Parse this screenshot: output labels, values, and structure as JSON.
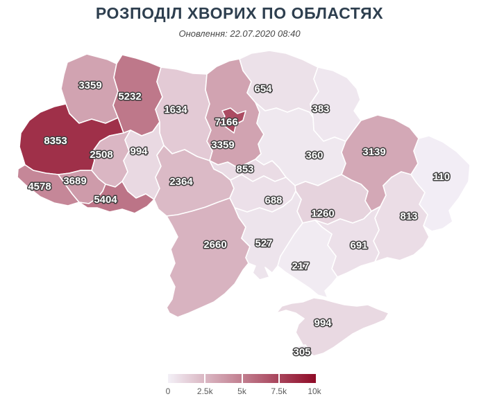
{
  "header": {
    "title": "РОЗПОДІЛ ХВОРИХ ПО ОБЛАСТЯХ",
    "subtitle": "Оновлення: 22.07.2020 08:40"
  },
  "map": {
    "regions": [
      {
        "name": "Volyn",
        "value": "3359",
        "color": "#d1a3b1"
      },
      {
        "name": "Rivne",
        "value": "5232",
        "color": "#be788a"
      },
      {
        "name": "Zhytomyr",
        "value": "1634",
        "color": "#e3cad5"
      },
      {
        "name": "Kyiv oblast",
        "value": "3359",
        "color": "#d1a3b1"
      },
      {
        "name": "Chernihiv",
        "value": "654",
        "color": "#ece1e9"
      },
      {
        "name": "Sumy",
        "value": "383",
        "color": "#efe7ef"
      },
      {
        "name": "Lviv",
        "value": "8353",
        "color": "#9f3049"
      },
      {
        "name": "Ternopil",
        "value": "2508",
        "color": "#dab6c3"
      },
      {
        "name": "Khmelnytskyi",
        "value": "994",
        "color": "#e9d9e2"
      },
      {
        "name": "Vinnytsia",
        "value": "2364",
        "color": "#dbbac6"
      },
      {
        "name": "Cherkasy",
        "value": "853",
        "color": "#eadce5"
      },
      {
        "name": "Poltava",
        "value": "360",
        "color": "#efe8ef"
      },
      {
        "name": "Kharkiv",
        "value": "3139",
        "color": "#d3a8b6"
      },
      {
        "name": "Luhansk",
        "value": "110",
        "color": "#f2edf5"
      },
      {
        "name": "Zakarpattia",
        "value": "4578",
        "color": "#c58798"
      },
      {
        "name": "Ivano-Frankivsk",
        "value": "3689",
        "color": "#ce9baa"
      },
      {
        "name": "Chernivtsi",
        "value": "5404",
        "color": "#bc7487"
      },
      {
        "name": "Kirovohrad",
        "value": "688",
        "color": "#ece0e9"
      },
      {
        "name": "Dnipropetrovsk",
        "value": "1260",
        "color": "#e6d3dd"
      },
      {
        "name": "Donetsk",
        "value": "813",
        "color": "#ebdde6"
      },
      {
        "name": "Odesa",
        "value": "2660",
        "color": "#d8b3c0"
      },
      {
        "name": "Mykolaiv",
        "value": "527",
        "color": "#ede4ec"
      },
      {
        "name": "Zaporizhzhia",
        "value": "691",
        "color": "#ece0e9"
      },
      {
        "name": "Kherson",
        "value": "217",
        "color": "#f1ebf2"
      },
      {
        "name": "Crimea",
        "value": "994",
        "color": "#e9d9e2"
      },
      {
        "name": "Sevastopol",
        "value": "305",
        "color": "#f0e9f0"
      },
      {
        "name": "Kyiv city",
        "value": "7166",
        "color": "#ab4b62"
      }
    ]
  },
  "legend": {
    "ticks": [
      "0",
      "2.5k",
      "5k",
      "7.5k",
      "10k"
    ],
    "stops": [
      "#f3f0f7",
      "#dab7c3",
      "#c17e8f",
      "#a8445b",
      "#8f0b27"
    ]
  },
  "chart_data": {
    "type": "heatmap",
    "subtype": "choropleth-map",
    "title": "РОЗПОДІЛ ХВОРИХ ПО ОБЛАСТЯХ",
    "subtitle": "Оновлення: 22.07.2020 08:40",
    "regions": [
      {
        "name": "Volyn",
        "value": 3359
      },
      {
        "name": "Rivne",
        "value": 5232
      },
      {
        "name": "Zhytomyr",
        "value": 1634
      },
      {
        "name": "Kyiv oblast",
        "value": 3359
      },
      {
        "name": "Chernihiv",
        "value": 654
      },
      {
        "name": "Sumy",
        "value": 383
      },
      {
        "name": "Lviv",
        "value": 8353
      },
      {
        "name": "Ternopil",
        "value": 2508
      },
      {
        "name": "Khmelnytskyi",
        "value": 994
      },
      {
        "name": "Vinnytsia",
        "value": 2364
      },
      {
        "name": "Cherkasy",
        "value": 853
      },
      {
        "name": "Poltava",
        "value": 360
      },
      {
        "name": "Kharkiv",
        "value": 3139
      },
      {
        "name": "Luhansk",
        "value": 110
      },
      {
        "name": "Zakarpattia",
        "value": 4578
      },
      {
        "name": "Ivano-Frankivsk",
        "value": 3689
      },
      {
        "name": "Chernivtsi",
        "value": 5404
      },
      {
        "name": "Kirovohrad",
        "value": 688
      },
      {
        "name": "Dnipropetrovsk",
        "value": 1260
      },
      {
        "name": "Donetsk",
        "value": 813
      },
      {
        "name": "Odesa",
        "value": 2660
      },
      {
        "name": "Mykolaiv",
        "value": 527
      },
      {
        "name": "Zaporizhzhia",
        "value": 691
      },
      {
        "name": "Kherson",
        "value": 217
      },
      {
        "name": "Crimea",
        "value": 994
      },
      {
        "name": "Sevastopol",
        "value": 305
      },
      {
        "name": "Kyiv city",
        "value": 7166
      }
    ],
    "colorscale": {
      "min": 0,
      "max": 10000,
      "tick_labels": [
        "0",
        "2.5k",
        "5k",
        "7.5k",
        "10k"
      ],
      "start_color": "#f3f0f7",
      "end_color": "#8f0b27",
      "legend_position": "bottom-center"
    }
  }
}
